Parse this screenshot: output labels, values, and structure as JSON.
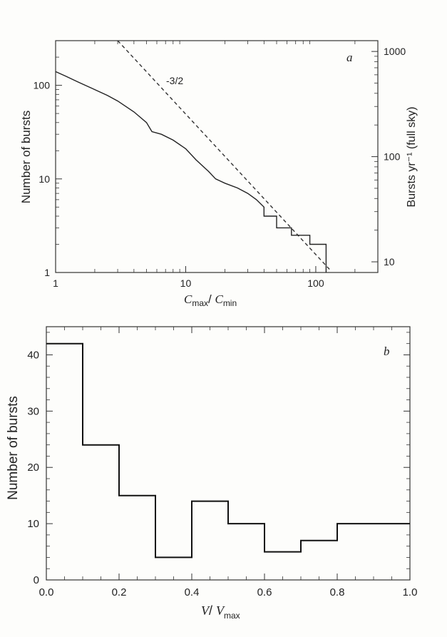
{
  "chart_data": [
    {
      "panel": "a",
      "type": "line",
      "xscale": "log",
      "yscale": "log",
      "xlim": [
        1,
        300
      ],
      "ylim": [
        1,
        300
      ],
      "xlabel_main": "C",
      "xlabel_sub1": "max",
      "xlabel_sep": "/ ",
      "xlabel_main2": "C",
      "xlabel_sub2": "min",
      "ylabel": "Number of bursts",
      "y2label": "Bursts yr⁻¹ (full sky)",
      "x_ticks": [
        {
          "value": 1,
          "label": "1"
        },
        {
          "value": 10,
          "label": "10"
        },
        {
          "value": 100,
          "label": "100"
        }
      ],
      "y_ticks": [
        {
          "value": 1,
          "label": "1"
        },
        {
          "value": 10,
          "label": "10"
        },
        {
          "value": 100,
          "label": "100"
        }
      ],
      "y2_ticks": [
        {
          "value": 1000,
          "label": "1000"
        },
        {
          "value": 100,
          "label": "100"
        },
        {
          "value": 10,
          "label": "10"
        }
      ],
      "y2_map": {
        "y_at_10": 1.3,
        "y_at_1000": 230
      },
      "reference_line": {
        "label": "-3/2",
        "slope": -1.5,
        "points": [
          [
            3,
            300
          ],
          [
            130,
            1.05
          ]
        ]
      },
      "series": [
        {
          "style": "step",
          "points": [
            [
              1.0,
              140
            ],
            [
              1.2,
              125
            ],
            [
              1.5,
              108
            ],
            [
              2.0,
              90
            ],
            [
              2.5,
              78
            ],
            [
              3.0,
              68
            ],
            [
              4.0,
              52
            ],
            [
              5.0,
              40
            ],
            [
              5.5,
              32
            ],
            [
              6.5,
              30
            ],
            [
              8.0,
              26
            ],
            [
              10,
              21
            ],
            [
              12,
              16
            ],
            [
              15,
              12
            ],
            [
              17,
              10
            ],
            [
              20,
              9
            ],
            [
              25,
              8
            ],
            [
              30,
              7
            ],
            [
              35,
              6
            ],
            [
              40,
              5
            ],
            [
              40,
              4
            ],
            [
              50,
              4
            ],
            [
              50,
              3
            ],
            [
              65,
              3
            ],
            [
              65,
              2.5
            ],
            [
              90,
              2.5
            ],
            [
              90,
              2
            ],
            [
              120,
              2
            ],
            [
              120,
              1
            ]
          ]
        }
      ],
      "panel_label": "a"
    },
    {
      "panel": "b",
      "type": "bar",
      "style": "step-histogram",
      "xlim": [
        0,
        1
      ],
      "ylim": [
        0,
        45
      ],
      "xlabel_main": "V",
      "xlabel_sep": "/ ",
      "xlabel_main2": "V",
      "xlabel_sub2": "max",
      "ylabel": "Number of bursts",
      "bin_edges": [
        0.0,
        0.1,
        0.2,
        0.3,
        0.4,
        0.5,
        0.6,
        0.7,
        0.8,
        1.0
      ],
      "values": [
        42,
        24,
        15,
        4,
        14,
        10,
        5,
        7,
        10
      ],
      "x_ticks": [
        {
          "value": 0.0,
          "label": "0.0"
        },
        {
          "value": 0.2,
          "label": "0.2"
        },
        {
          "value": 0.4,
          "label": "0.4"
        },
        {
          "value": 0.6,
          "label": "0.6"
        },
        {
          "value": 0.8,
          "label": "0.8"
        },
        {
          "value": 1.0,
          "label": "1.0"
        }
      ],
      "y_ticks": [
        {
          "value": 0,
          "label": "0"
        },
        {
          "value": 10,
          "label": "10"
        },
        {
          "value": 20,
          "label": "20"
        },
        {
          "value": 30,
          "label": "30"
        },
        {
          "value": 40,
          "label": "40"
        }
      ],
      "panel_label": "b"
    }
  ]
}
